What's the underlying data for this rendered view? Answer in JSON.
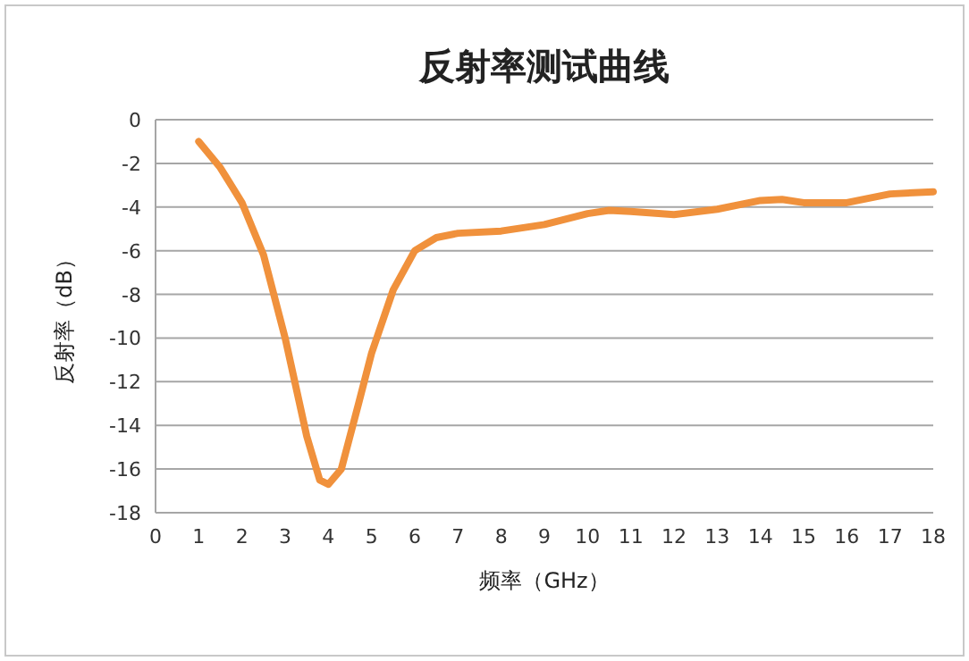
{
  "chart_data": {
    "type": "line",
    "title": "反射率测试曲线",
    "xlabel": "频率（GHz）",
    "ylabel": "反射率（dB）",
    "grid": "y",
    "xlim": [
      0,
      18
    ],
    "xticks": [
      0,
      1,
      2,
      3,
      4,
      5,
      6,
      7,
      8,
      9,
      10,
      11,
      12,
      13,
      14,
      15,
      16,
      17,
      18
    ],
    "ylim": [
      -18,
      0
    ],
    "yticks": [
      -18,
      -16,
      -14,
      -12,
      -10,
      -8,
      -6,
      -4,
      -2,
      0
    ],
    "series": [
      {
        "color": "#f0913c",
        "x": [
          1,
          1.5,
          2,
          2.5,
          3,
          3.5,
          3.8,
          4,
          4.3,
          4.7,
          5,
          5.5,
          6,
          6.5,
          7,
          8,
          9,
          10,
          10.5,
          11,
          12,
          13,
          14,
          14.5,
          15,
          16,
          17,
          18
        ],
        "values": [
          -1,
          -2.2,
          -3.8,
          -6.2,
          -10,
          -14.5,
          -16.5,
          -16.7,
          -16,
          -13,
          -10.7,
          -7.8,
          -6,
          -5.4,
          -5.2,
          -5.1,
          -4.8,
          -4.3,
          -4.15,
          -4.2,
          -4.35,
          -4.1,
          -3.7,
          -3.65,
          -3.8,
          -3.8,
          -3.4,
          -3.3
        ]
      }
    ]
  }
}
